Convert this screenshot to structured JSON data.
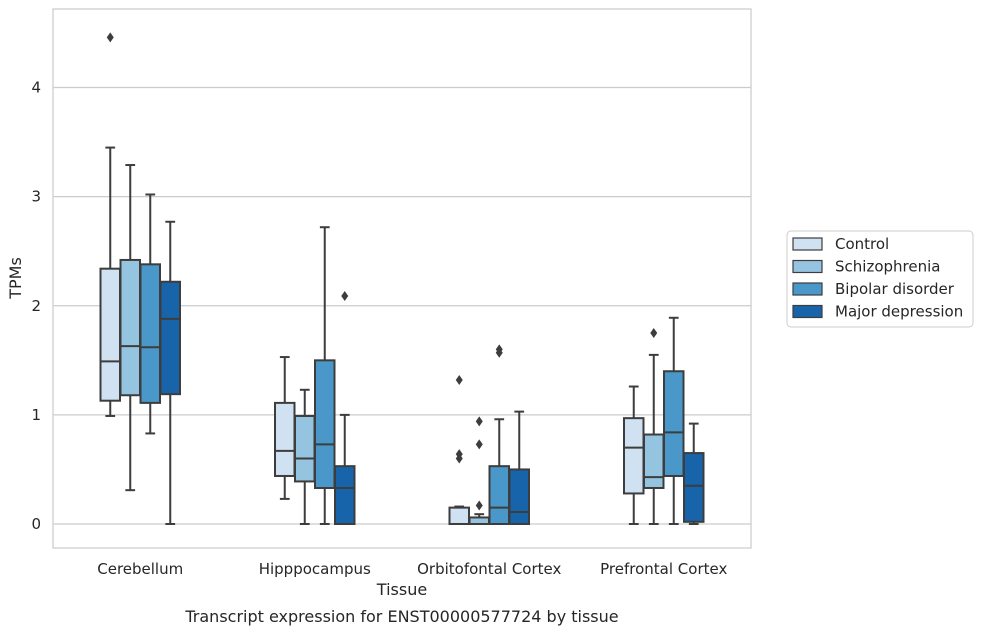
{
  "chart_data": {
    "type": "box",
    "title": "",
    "caption": "Transcript expression for ENST00000577724 by tissue",
    "xlabel": "Tissue",
    "ylabel": "TPMs",
    "ylim": [
      -0.22,
      4.72
    ],
    "yticks": [
      0,
      1,
      2,
      3,
      4
    ],
    "grid": "horizontal",
    "legend_position": "right",
    "categories": [
      "Cerebellum",
      "Hipppocampus",
      "Orbitofontal Cortex",
      "Prefrontal Cortex"
    ],
    "series": [
      {
        "name": "Control",
        "color": "#d0e1f2",
        "boxes": [
          {
            "whislo": 0.99,
            "q1": 1.13,
            "med": 1.49,
            "q3": 2.34,
            "whishi": 3.45,
            "fliers": [
              4.46
            ]
          },
          {
            "whislo": 0.23,
            "q1": 0.44,
            "med": 0.67,
            "q3": 1.11,
            "whishi": 1.53,
            "fliers": []
          },
          {
            "whislo": 0.0,
            "q1": 0.0,
            "med": 0.0,
            "q3": 0.15,
            "whishi": 0.16,
            "fliers": [
              0.6,
              0.64,
              1.32
            ]
          },
          {
            "whislo": 0.0,
            "q1": 0.28,
            "med": 0.7,
            "q3": 0.97,
            "whishi": 1.26,
            "fliers": []
          }
        ]
      },
      {
        "name": "Schizophrenia",
        "color": "#94c4df",
        "boxes": [
          {
            "whislo": 0.31,
            "q1": 1.18,
            "med": 1.63,
            "q3": 2.42,
            "whishi": 3.29,
            "fliers": []
          },
          {
            "whislo": 0.0,
            "q1": 0.39,
            "med": 0.6,
            "q3": 0.99,
            "whishi": 1.23,
            "fliers": []
          },
          {
            "whislo": 0.0,
            "q1": 0.0,
            "med": 0.0,
            "q3": 0.06,
            "whishi": 0.09,
            "fliers": [
              0.17,
              0.73,
              0.94
            ]
          },
          {
            "whislo": 0.0,
            "q1": 0.33,
            "med": 0.43,
            "q3": 0.82,
            "whishi": 1.55,
            "fliers": [
              1.75
            ]
          }
        ]
      },
      {
        "name": "Bipolar disorder",
        "color": "#4a98c9",
        "boxes": [
          {
            "whislo": 0.83,
            "q1": 1.11,
            "med": 1.62,
            "q3": 2.38,
            "whishi": 3.02,
            "fliers": []
          },
          {
            "whislo": 0.0,
            "q1": 0.33,
            "med": 0.73,
            "q3": 1.5,
            "whishi": 2.72,
            "fliers": []
          },
          {
            "whislo": 0.0,
            "q1": 0.0,
            "med": 0.15,
            "q3": 0.53,
            "whishi": 0.96,
            "fliers": [
              1.57,
              1.6
            ]
          },
          {
            "whislo": 0.0,
            "q1": 0.44,
            "med": 0.84,
            "q3": 1.4,
            "whishi": 1.89,
            "fliers": []
          }
        ]
      },
      {
        "name": "Major depression",
        "color": "#1764ab",
        "boxes": [
          {
            "whislo": 0.0,
            "q1": 1.19,
            "med": 1.88,
            "q3": 2.22,
            "whishi": 2.77,
            "fliers": []
          },
          {
            "whislo": 0.0,
            "q1": 0.0,
            "med": 0.33,
            "q3": 0.53,
            "whishi": 1.0,
            "fliers": [
              2.09
            ]
          },
          {
            "whislo": 0.0,
            "q1": 0.0,
            "med": 0.11,
            "q3": 0.5,
            "whishi": 1.03,
            "fliers": []
          },
          {
            "whislo": 0.0,
            "q1": 0.02,
            "med": 0.35,
            "q3": 0.65,
            "whishi": 0.92,
            "fliers": []
          }
        ]
      }
    ]
  }
}
